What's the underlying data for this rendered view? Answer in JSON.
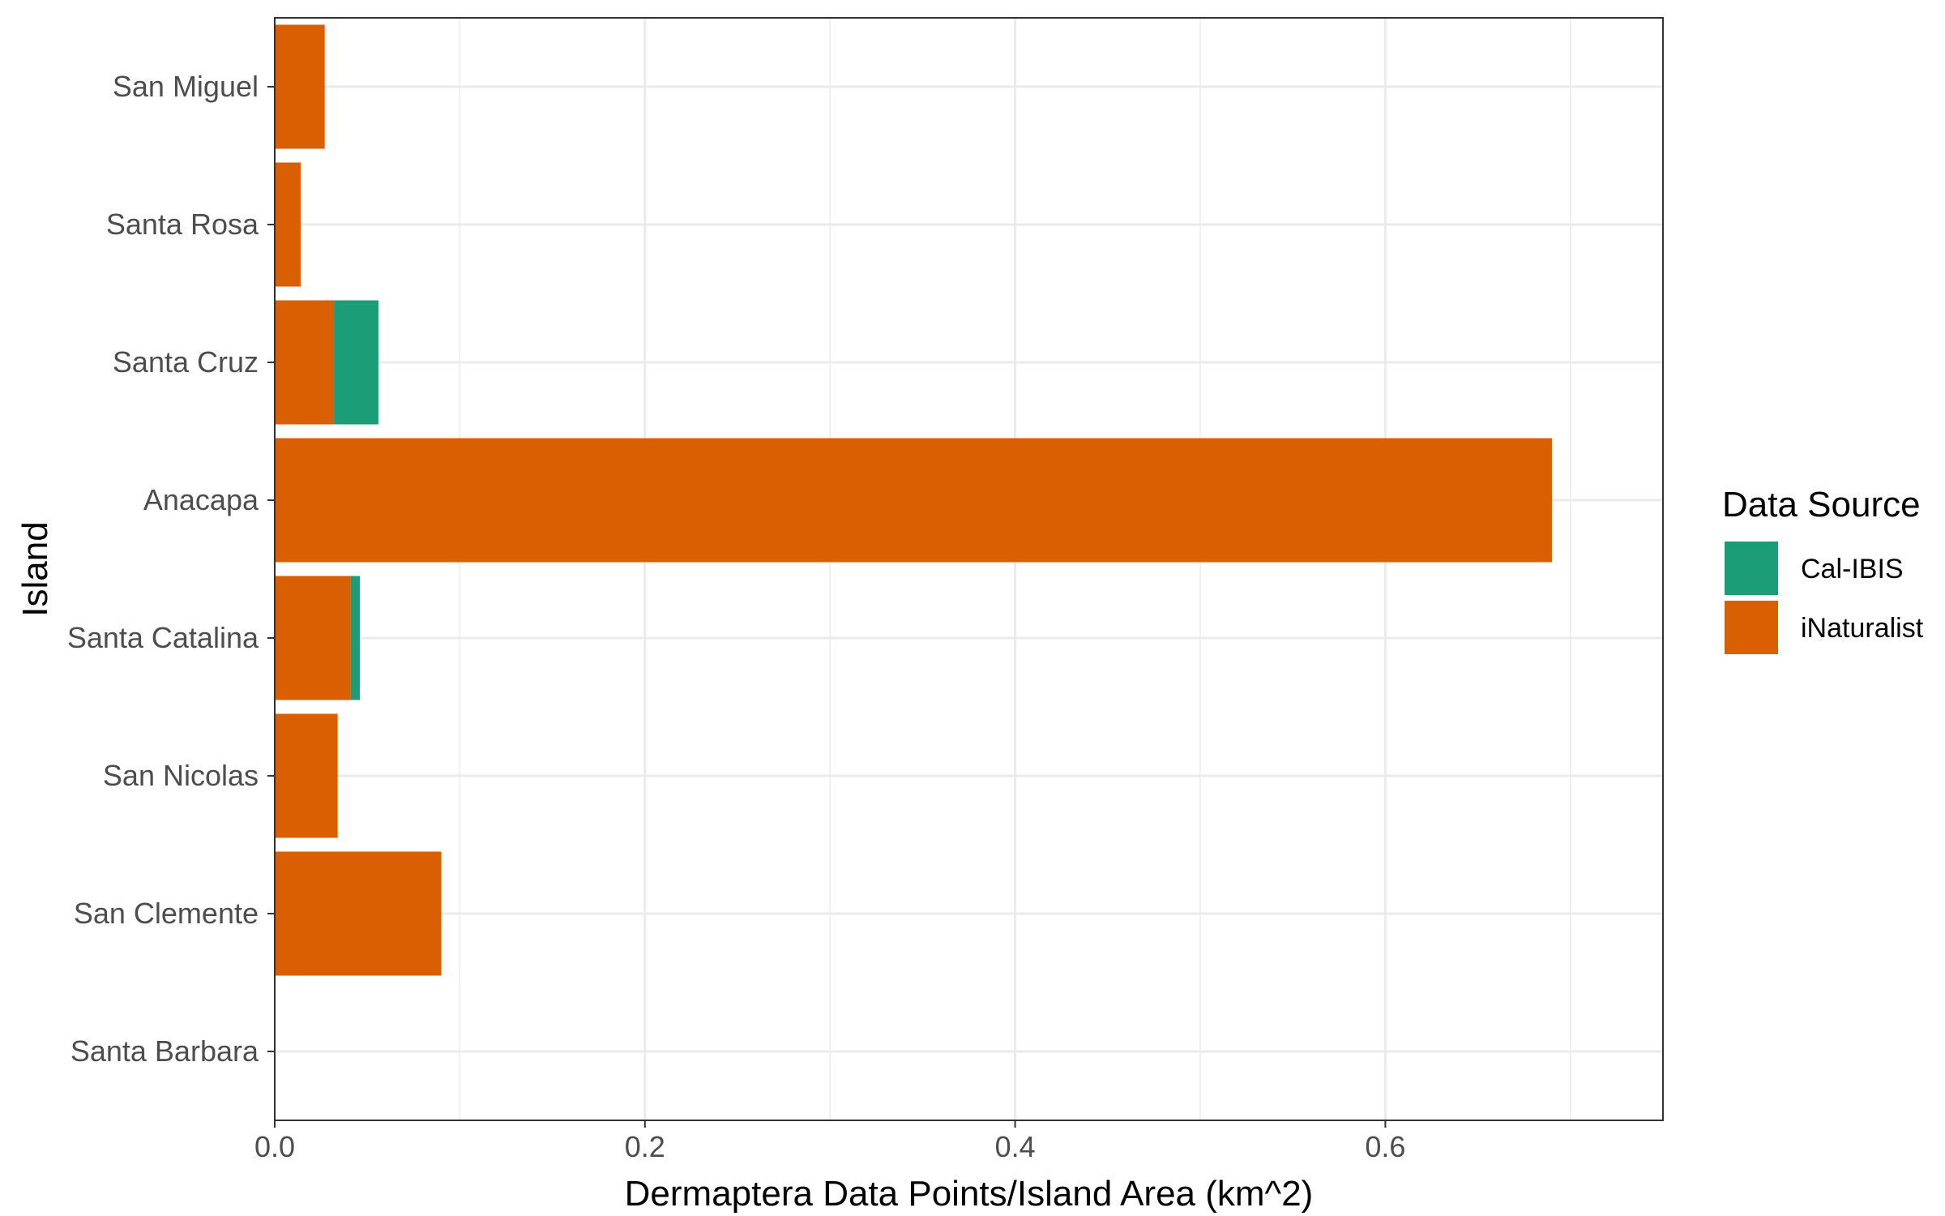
{
  "chart_data": {
    "type": "bar",
    "orientation": "horizontal",
    "stacked": true,
    "categories": [
      "San Miguel",
      "Santa Rosa",
      "Santa Cruz",
      "Anacapa",
      "Santa Catalina",
      "San Nicolas",
      "San Clemente",
      "Santa Barbara"
    ],
    "series": [
      {
        "name": "iNaturalist",
        "color": "#D95F02",
        "values": [
          0.027,
          0.014,
          0.032,
          0.69,
          0.041,
          0.034,
          0.09,
          0.0
        ]
      },
      {
        "name": "Cal-IBIS",
        "color": "#1B9E77",
        "values": [
          0.0,
          0.0,
          0.024,
          0.0,
          0.005,
          0.0,
          0.0,
          0.0
        ]
      }
    ],
    "xlabel": "Dermaptera Data Points/Island Area (km^2)",
    "ylabel": "Island",
    "xlim": [
      0,
      0.75
    ],
    "xticks": [
      0.0,
      0.2,
      0.4,
      0.6
    ],
    "xtick_labels": [
      "0.0",
      "0.2",
      "0.4",
      "0.6"
    ],
    "grid": true,
    "legend": {
      "title": "Data Source",
      "position": "right",
      "entries": [
        {
          "label": "Cal-IBIS",
          "color": "#1B9E77"
        },
        {
          "label": "iNaturalist",
          "color": "#D95F02"
        }
      ]
    }
  }
}
